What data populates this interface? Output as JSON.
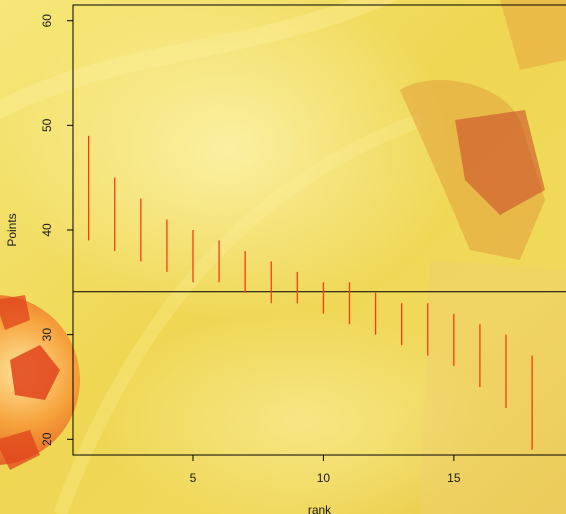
{
  "chart_data": {
    "type": "range",
    "title": "",
    "xlabel": "rank",
    "ylabel": "Points",
    "xlim": [
      0.4,
      19.3
    ],
    "ylim": [
      18.5,
      61.5
    ],
    "x_ticks": [
      5,
      10,
      15
    ],
    "y_ticks": [
      20,
      30,
      40,
      50,
      60
    ],
    "reference_line_y": 34.1,
    "series": [
      {
        "color": "#ff3a10",
        "values": [
          {
            "x": 1,
            "low": 39,
            "high": 49
          },
          {
            "x": 2,
            "low": 38,
            "high": 45
          },
          {
            "x": 3,
            "low": 37,
            "high": 43
          },
          {
            "x": 4,
            "low": 36,
            "high": 41
          },
          {
            "x": 5,
            "low": 35,
            "high": 40
          },
          {
            "x": 6,
            "low": 35,
            "high": 39
          },
          {
            "x": 7,
            "low": 34,
            "high": 38
          },
          {
            "x": 8,
            "low": 33,
            "high": 37
          },
          {
            "x": 9,
            "low": 33,
            "high": 36
          },
          {
            "x": 10,
            "low": 32,
            "high": 35
          },
          {
            "x": 11,
            "low": 31,
            "high": 35
          },
          {
            "x": 12,
            "low": 30,
            "high": 34
          },
          {
            "x": 13,
            "low": 29,
            "high": 33
          },
          {
            "x": 14,
            "low": 28,
            "high": 33
          },
          {
            "x": 15,
            "low": 27,
            "high": 32
          },
          {
            "x": 16,
            "low": 25,
            "high": 31
          },
          {
            "x": 17,
            "low": 23,
            "high": 30
          },
          {
            "x": 18,
            "low": 19,
            "high": 28
          }
        ]
      }
    ],
    "background_colors": [
      "#f6e77a",
      "#e9c93a",
      "#f29a2a",
      "#e2471c"
    ]
  }
}
